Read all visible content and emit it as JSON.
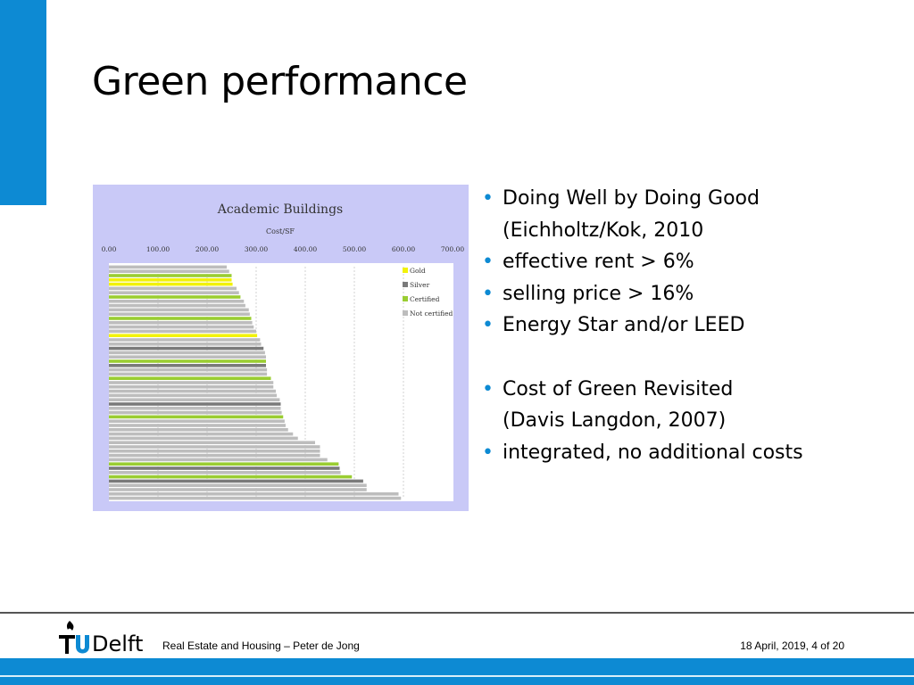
{
  "slide": {
    "title": "Green performance",
    "accent_color": "#0d8ad3"
  },
  "bullets": [
    {
      "text": "Doing Well by Doing Good",
      "bullet": true
    },
    {
      "text": "(Eichholtz/Kok, 2010",
      "bullet": false
    },
    {
      "text": "effective rent > 6%",
      "bullet": true
    },
    {
      "text": "selling price > 16%",
      "bullet": true
    },
    {
      "text": "Energy Star and/or LEED",
      "bullet": true
    },
    {
      "text": "",
      "bullet": false
    },
    {
      "text": "Cost of Green Revisited",
      "bullet": true
    },
    {
      "text": "(Davis Langdon, 2007)",
      "bullet": false
    },
    {
      "text": "integrated, no additional costs",
      "bullet": true
    }
  ],
  "footer": {
    "logo_text": "TUDelft",
    "left": "Real Estate and Housing – Peter de Jong",
    "right": "18 April, 2019, 4 of 20"
  },
  "chart_data": {
    "type": "bar",
    "orientation": "horizontal",
    "title": "Academic Buildings",
    "subtitle": "Cost/SF",
    "xlim": [
      0,
      700
    ],
    "xticks": [
      "0.00",
      "100.00",
      "200.00",
      "300.00",
      "400.00",
      "500.00",
      "600.00",
      "700.00"
    ],
    "grid": true,
    "legend_position": "top-right",
    "legend": [
      {
        "name": "Gold",
        "color": "#f2f20a"
      },
      {
        "name": "Silver",
        "color": "#7a7a7a"
      },
      {
        "name": "Certified",
        "color": "#9acd32"
      },
      {
        "name": "Not certified",
        "color": "#bdbdbd"
      }
    ],
    "bars": [
      {
        "value": 240,
        "category": "Not certified"
      },
      {
        "value": 245,
        "category": "Not certified"
      },
      {
        "value": 250,
        "category": "Certified"
      },
      {
        "value": 250,
        "category": "Gold"
      },
      {
        "value": 252,
        "category": "Gold"
      },
      {
        "value": 260,
        "category": "Not certified"
      },
      {
        "value": 265,
        "category": "Not certified"
      },
      {
        "value": 268,
        "category": "Certified"
      },
      {
        "value": 275,
        "category": "Not certified"
      },
      {
        "value": 278,
        "category": "Not certified"
      },
      {
        "value": 285,
        "category": "Not certified"
      },
      {
        "value": 287,
        "category": "Not certified"
      },
      {
        "value": 290,
        "category": "Certified"
      },
      {
        "value": 292,
        "category": "Not certified"
      },
      {
        "value": 295,
        "category": "Not certified"
      },
      {
        "value": 300,
        "category": "Not certified"
      },
      {
        "value": 302,
        "category": "Gold"
      },
      {
        "value": 308,
        "category": "Not certified"
      },
      {
        "value": 310,
        "category": "Not certified"
      },
      {
        "value": 315,
        "category": "Silver"
      },
      {
        "value": 318,
        "category": "Not certified"
      },
      {
        "value": 320,
        "category": "Not certified"
      },
      {
        "value": 320,
        "category": "Certified"
      },
      {
        "value": 320,
        "category": "Silver"
      },
      {
        "value": 322,
        "category": "Not certified"
      },
      {
        "value": 322,
        "category": "Not certified"
      },
      {
        "value": 330,
        "category": "Certified"
      },
      {
        "value": 335,
        "category": "Not certified"
      },
      {
        "value": 335,
        "category": "Not certified"
      },
      {
        "value": 340,
        "category": "Not certified"
      },
      {
        "value": 342,
        "category": "Not certified"
      },
      {
        "value": 348,
        "category": "Not certified"
      },
      {
        "value": 350,
        "category": "Silver"
      },
      {
        "value": 350,
        "category": "Not certified"
      },
      {
        "value": 352,
        "category": "Not certified"
      },
      {
        "value": 355,
        "category": "Certified"
      },
      {
        "value": 358,
        "category": "Not certified"
      },
      {
        "value": 360,
        "category": "Not certified"
      },
      {
        "value": 365,
        "category": "Not certified"
      },
      {
        "value": 375,
        "category": "Not certified"
      },
      {
        "value": 385,
        "category": "Not certified"
      },
      {
        "value": 420,
        "category": "Not certified"
      },
      {
        "value": 430,
        "category": "Not certified"
      },
      {
        "value": 430,
        "category": "Not certified"
      },
      {
        "value": 430,
        "category": "Not certified"
      },
      {
        "value": 445,
        "category": "Not certified"
      },
      {
        "value": 468,
        "category": "Certified"
      },
      {
        "value": 470,
        "category": "Silver"
      },
      {
        "value": 472,
        "category": "Not certified"
      },
      {
        "value": 495,
        "category": "Certified"
      },
      {
        "value": 518,
        "category": "Silver"
      },
      {
        "value": 525,
        "category": "Not certified"
      },
      {
        "value": 525,
        "category": "Not certified"
      },
      {
        "value": 590,
        "category": "Not certified"
      },
      {
        "value": 595,
        "category": "Not certified"
      }
    ]
  }
}
